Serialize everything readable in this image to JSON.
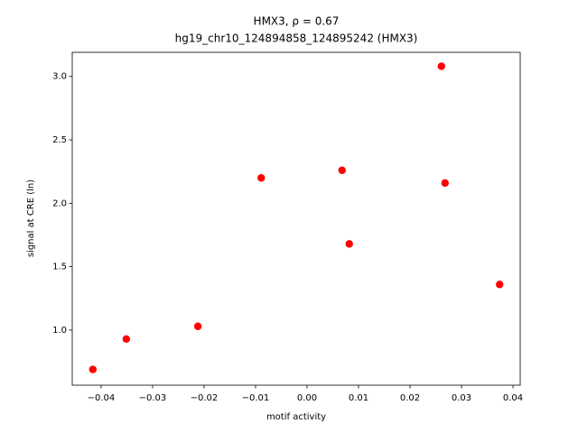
{
  "chart_data": {
    "type": "scatter",
    "title": "HMX3, ρ = 0.67",
    "subtitle": "hg19_chr10_124894858_124895242 (HMX3)",
    "x_label": "motif activity",
    "y_label": "signal at CRE (ln)",
    "color": "#ff0000",
    "x": [
      -0.0416,
      -0.0351,
      -0.0212,
      -0.0089,
      0.0068,
      0.0082,
      0.0261,
      0.0268,
      0.0374
    ],
    "values": [
      0.69,
      0.93,
      1.03,
      2.2,
      2.26,
      1.68,
      3.08,
      2.16,
      1.36
    ],
    "xlim": [
      -0.0456,
      0.0414
    ],
    "ylim": [
      0.566,
      3.19
    ],
    "xticks": [
      {
        "value": -0.04,
        "label": "−0.04"
      },
      {
        "value": -0.03,
        "label": "−0.03"
      },
      {
        "value": -0.02,
        "label": "−0.02"
      },
      {
        "value": -0.01,
        "label": "−0.01"
      },
      {
        "value": 0,
        "label": "0.00"
      },
      {
        "value": 0.01,
        "label": "0.01"
      },
      {
        "value": 0.02,
        "label": "0.02"
      },
      {
        "value": 0.03,
        "label": "0.03"
      },
      {
        "value": 0.04,
        "label": "0.04"
      }
    ],
    "yticks": [
      {
        "value": 1,
        "label": "1.0"
      },
      {
        "value": 1.5,
        "label": "1.5"
      },
      {
        "value": 2,
        "label": "2.0"
      },
      {
        "value": 2.5,
        "label": "2.5"
      },
      {
        "value": 3,
        "label": "3.0"
      }
    ]
  }
}
